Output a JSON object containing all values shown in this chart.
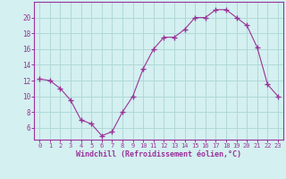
{
  "x": [
    0,
    1,
    2,
    3,
    4,
    5,
    6,
    7,
    8,
    9,
    10,
    11,
    12,
    13,
    14,
    15,
    16,
    17,
    18,
    19,
    20,
    21,
    22,
    23
  ],
  "y": [
    12.2,
    12.0,
    11.0,
    9.5,
    7.0,
    6.5,
    5.0,
    5.5,
    8.0,
    10.0,
    13.5,
    16.0,
    17.5,
    17.5,
    18.5,
    20.0,
    20.0,
    21.0,
    21.0,
    20.0,
    19.0,
    16.2,
    11.5,
    10.0
  ],
  "line_color": "#993399",
  "marker": "+",
  "marker_size": 4,
  "bg_color": "#d4f0f0",
  "grid_color": "#b0d8d8",
  "xlabel": "Windchill (Refroidissement éolien,°C)",
  "xlabel_color": "#993399",
  "tick_color": "#993399",
  "spine_color": "#993399",
  "ylim": [
    4.5,
    22
  ],
  "xlim": [
    -0.5,
    23.5
  ],
  "yticks": [
    6,
    8,
    10,
    12,
    14,
    16,
    18,
    20
  ],
  "xticks": [
    0,
    1,
    2,
    3,
    4,
    5,
    6,
    7,
    8,
    9,
    10,
    11,
    12,
    13,
    14,
    15,
    16,
    17,
    18,
    19,
    20,
    21,
    22,
    23
  ]
}
